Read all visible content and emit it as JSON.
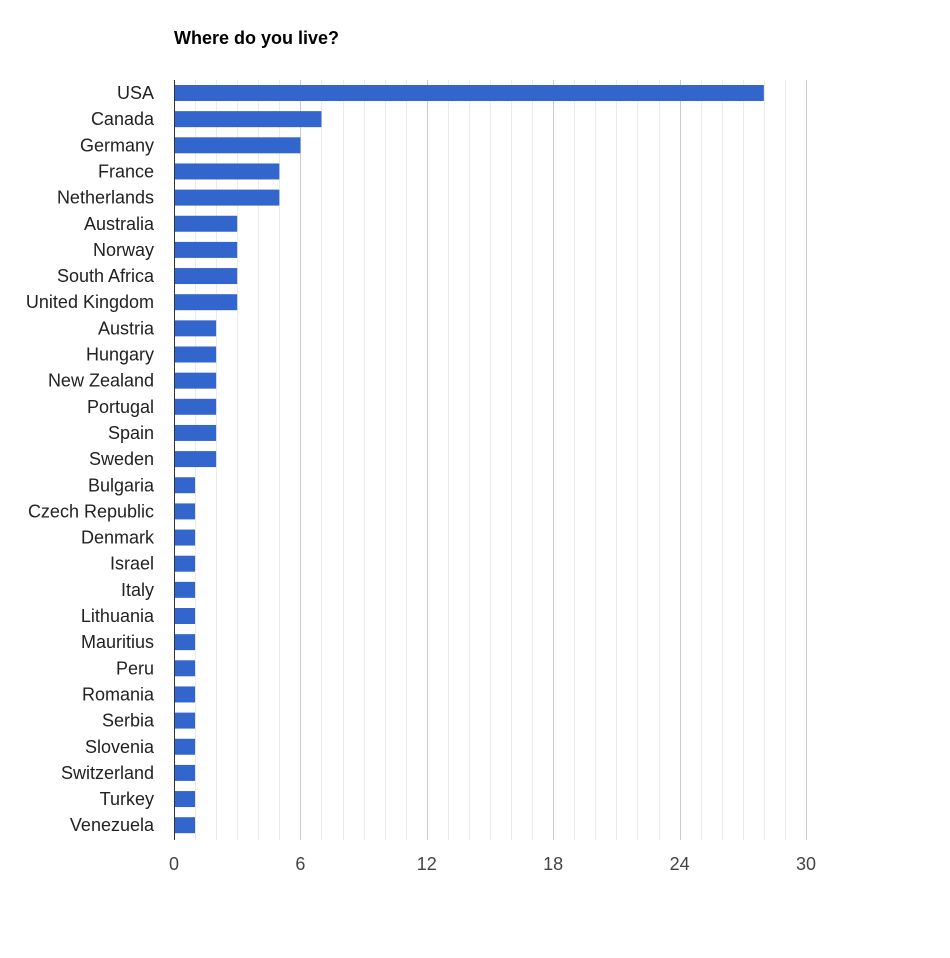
{
  "chart_data": {
    "type": "bar",
    "orientation": "horizontal",
    "title": "Where do you live?",
    "xlabel": "",
    "ylabel": "",
    "categories": [
      "USA",
      "Canada",
      "Germany",
      "France",
      "Netherlands",
      "Australia",
      "Norway",
      "South Africa",
      "United Kingdom",
      "Austria",
      "Hungary",
      "New Zealand",
      "Portugal",
      "Spain",
      "Sweden",
      "Bulgaria",
      "Czech Republic",
      "Denmark",
      "Israel",
      "Italy",
      "Lithuania",
      "Mauritius",
      "Peru",
      "Romania",
      "Serbia",
      "Slovenia",
      "Switzerland",
      "Turkey",
      "Venezuela"
    ],
    "values": [
      28,
      7,
      6,
      5,
      5,
      3,
      3,
      3,
      3,
      2,
      2,
      2,
      2,
      2,
      2,
      1,
      1,
      1,
      1,
      1,
      1,
      1,
      1,
      1,
      1,
      1,
      1,
      1,
      1
    ],
    "xlim": [
      0,
      30
    ],
    "xticks": [
      0,
      6,
      12,
      18,
      24,
      30
    ],
    "tick_labels": [
      "0",
      "6",
      "12",
      "18",
      "24",
      "30"
    ],
    "minor_grid_step": 1,
    "grid": true,
    "legend": "none",
    "colors": {
      "bar": "#3366cc",
      "major_grid": "#cccccc",
      "minor_grid": "#ebebeb",
      "axis": "#333333"
    }
  }
}
